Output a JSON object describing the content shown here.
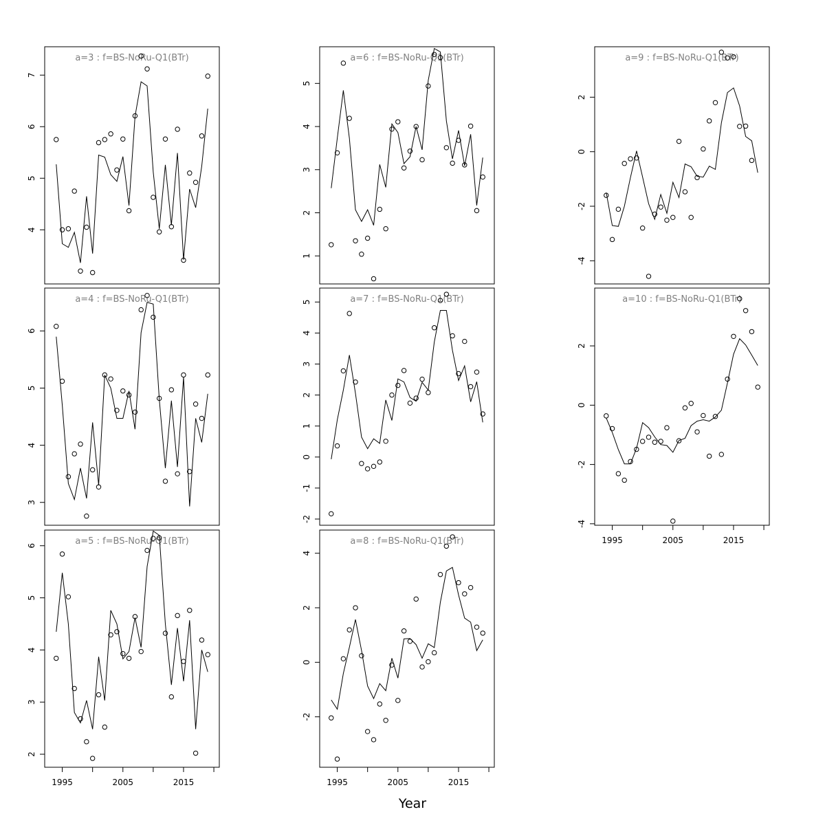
{
  "xlabel": "Year",
  "chart_data": [
    {
      "type": "scatter+line",
      "title": "a=3  :  f=BS-NoRu-Q1(BTr)",
      "x": [
        1994,
        1995,
        1996,
        1997,
        1998,
        1999,
        2000,
        2001,
        2002,
        2003,
        2004,
        2005,
        2006,
        2007,
        2008,
        2009,
        2010,
        2011,
        2012,
        2013,
        2014,
        2015,
        2016,
        2017,
        2018,
        2019
      ],
      "observed": [
        5.75,
        4.0,
        4.02,
        4.75,
        3.2,
        4.05,
        3.17,
        5.69,
        5.75,
        5.86,
        5.16,
        5.76,
        4.37,
        6.21,
        7.37,
        7.12,
        4.63,
        3.96,
        5.76,
        4.06,
        5.95,
        3.41,
        5.1,
        4.92,
        5.82,
        6.98
      ],
      "fitted": [
        5.27,
        3.73,
        3.66,
        3.95,
        3.36,
        4.65,
        3.54,
        5.45,
        5.41,
        5.07,
        4.94,
        5.42,
        4.47,
        6.2,
        6.87,
        6.79,
        5.12,
        4.02,
        5.26,
        4.09,
        5.49,
        3.42,
        4.79,
        4.43,
        5.23,
        6.35
      ],
      "ylim": [
        2.95,
        7.55
      ],
      "yticks": [
        4,
        5,
        6,
        7
      ],
      "show_xaxis": false
    },
    {
      "type": "scatter+line",
      "title": "a=4  :  f=BS-NoRu-Q1(BTr)",
      "x": [
        1994,
        1995,
        1996,
        1997,
        1998,
        1999,
        2000,
        2001,
        2002,
        2003,
        2004,
        2005,
        2006,
        2007,
        2008,
        2009,
        2010,
        2011,
        2012,
        2013,
        2014,
        2015,
        2016,
        2017,
        2018,
        2019
      ],
      "observed": [
        6.08,
        5.12,
        3.45,
        3.85,
        4.02,
        2.76,
        3.57,
        3.27,
        5.23,
        5.16,
        4.61,
        4.95,
        4.88,
        4.58,
        6.37,
        6.62,
        6.24,
        4.82,
        3.37,
        4.97,
        3.5,
        5.23,
        3.54,
        4.72,
        4.47,
        5.23
      ],
      "fitted": [
        5.9,
        4.7,
        3.33,
        3.05,
        3.6,
        3.07,
        4.4,
        3.3,
        5.23,
        5.0,
        4.47,
        4.47,
        4.95,
        4.28,
        5.97,
        6.5,
        6.47,
        4.8,
        3.6,
        4.78,
        3.62,
        5.19,
        2.93,
        4.47,
        4.05,
        4.9
      ],
      "ylim": [
        2.6,
        6.75
      ],
      "yticks": [
        3,
        4,
        5,
        6
      ],
      "show_xaxis": false
    },
    {
      "type": "scatter+line",
      "title": "a=5  :  f=BS-NoRu-Q1(BTr)",
      "x": [
        1994,
        1995,
        1996,
        1997,
        1998,
        1999,
        2000,
        2001,
        2002,
        2003,
        2004,
        2005,
        2006,
        2007,
        2008,
        2009,
        2010,
        2011,
        2012,
        2013,
        2014,
        2015,
        2016,
        2017,
        2018,
        2019
      ],
      "observed": [
        3.84,
        5.84,
        5.02,
        3.26,
        2.68,
        2.24,
        1.92,
        3.14,
        2.52,
        4.29,
        4.35,
        3.93,
        3.84,
        4.64,
        3.97,
        5.91,
        6.14,
        6.15,
        4.32,
        3.1,
        4.66,
        3.78,
        4.76,
        2.02,
        4.19,
        3.91
      ],
      "fitted": [
        4.35,
        5.48,
        4.5,
        2.8,
        2.6,
        3.03,
        2.48,
        3.87,
        3.03,
        4.76,
        4.5,
        3.83,
        3.97,
        4.62,
        4.05,
        5.6,
        6.28,
        6.2,
        4.5,
        3.33,
        4.42,
        3.4,
        4.57,
        2.48,
        4.0,
        3.58
      ],
      "ylim": [
        1.75,
        6.3
      ],
      "yticks": [
        2,
        3,
        4,
        5,
        6
      ],
      "show_xaxis": true
    },
    {
      "type": "scatter+line",
      "title": "a=6  :  f=BS-NoRu-Q1(BTr)",
      "x": [
        1994,
        1995,
        1996,
        1997,
        1998,
        1999,
        2000,
        2001,
        2002,
        2003,
        2004,
        2005,
        2006,
        2007,
        2008,
        2009,
        2010,
        2011,
        2012,
        2013,
        2014,
        2015,
        2016,
        2017,
        2018,
        2019
      ],
      "observed": [
        1.26,
        3.39,
        5.47,
        4.19,
        1.35,
        1.04,
        1.41,
        0.47,
        2.08,
        1.63,
        3.94,
        4.11,
        3.04,
        3.43,
        4.0,
        3.23,
        4.94,
        5.67,
        5.6,
        3.51,
        3.15,
        3.68,
        3.11,
        4.01,
        2.05,
        2.83
      ],
      "fitted": [
        2.57,
        3.73,
        4.84,
        3.73,
        2.07,
        1.8,
        2.07,
        1.71,
        3.12,
        2.59,
        4.06,
        3.86,
        3.14,
        3.3,
        4.0,
        3.46,
        5.07,
        5.81,
        5.73,
        4.13,
        3.25,
        3.91,
        3.09,
        3.82,
        2.17,
        3.28
      ],
      "ylim": [
        0.35,
        5.85
      ],
      "yticks": [
        1,
        2,
        3,
        4,
        5
      ],
      "show_xaxis": false
    },
    {
      "type": "scatter+line",
      "title": "a=7  :  f=BS-NoRu-Q1(BTr)",
      "x": [
        1994,
        1995,
        1996,
        1997,
        1998,
        1999,
        2000,
        2001,
        2002,
        2003,
        2004,
        2005,
        2006,
        2007,
        2008,
        2009,
        2010,
        2011,
        2012,
        2013,
        2014,
        2015,
        2016,
        2017,
        2018,
        2019
      ],
      "observed": [
        -1.83,
        0.36,
        2.78,
        4.63,
        2.42,
        -0.21,
        -0.38,
        -0.3,
        -0.16,
        0.51,
        2.0,
        2.31,
        2.79,
        1.74,
        1.9,
        2.51,
        2.08,
        4.17,
        5.05,
        5.25,
        3.91,
        2.69,
        3.73,
        2.27,
        2.74,
        1.39
      ],
      "fitted": [
        -0.07,
        1.2,
        2.16,
        3.29,
        2.06,
        0.64,
        0.27,
        0.59,
        0.44,
        1.84,
        1.18,
        2.52,
        2.42,
        1.92,
        1.8,
        2.41,
        2.16,
        3.71,
        4.73,
        4.73,
        3.44,
        2.47,
        2.94,
        1.78,
        2.43,
        1.12
      ],
      "ylim": [
        -2.2,
        5.45
      ],
      "yticks": [
        -2,
        -1,
        0,
        1,
        2,
        3,
        4,
        5
      ],
      "show_xaxis": false
    },
    {
      "type": "scatter+line",
      "title": "a=8  :  f=BS-NoRu-Q1(BTr)",
      "x": [
        1994,
        1995,
        1996,
        1997,
        1998,
        1999,
        2000,
        2001,
        2002,
        2003,
        2004,
        2005,
        2006,
        2007,
        2008,
        2009,
        2010,
        2011,
        2012,
        2013,
        2014,
        2015,
        2016,
        2017,
        2018,
        2019
      ],
      "observed": [
        -2.04,
        -3.55,
        0.13,
        1.19,
        2.0,
        0.24,
        -2.54,
        -2.84,
        -1.53,
        -2.13,
        -0.1,
        -1.4,
        1.15,
        0.77,
        2.32,
        -0.17,
        0.02,
        0.35,
        3.22,
        4.26,
        4.6,
        2.92,
        2.51,
        2.74,
        1.29,
        1.07
      ],
      "fitted": [
        -1.38,
        -1.72,
        -0.41,
        0.55,
        1.57,
        0.43,
        -0.87,
        -1.33,
        -0.78,
        -1.04,
        0.15,
        -0.58,
        0.86,
        0.87,
        0.65,
        0.15,
        0.68,
        0.54,
        2.2,
        3.35,
        3.48,
        2.47,
        1.62,
        1.47,
        0.43,
        0.82
      ],
      "ylim": [
        -3.85,
        4.85
      ],
      "yticks": [
        -2,
        0,
        2,
        4
      ],
      "show_xaxis": true
    },
    {
      "type": "scatter+line",
      "title": "a=9  :  f=BS-NoRu-Q1(BTr)",
      "x": [
        1994,
        1995,
        1996,
        1997,
        1998,
        1999,
        2000,
        2001,
        2002,
        2003,
        2004,
        2005,
        2006,
        2007,
        2008,
        2009,
        2010,
        2011,
        2012,
        2013,
        2014,
        2015,
        2016,
        2017,
        2018,
        2019
      ],
      "observed": [
        -1.6,
        -3.22,
        -2.11,
        -0.43,
        -0.26,
        -0.23,
        -2.8,
        -4.57,
        -2.29,
        -2.03,
        -2.51,
        -2.41,
        0.38,
        -1.47,
        -2.41,
        -0.95,
        0.1,
        1.13,
        1.8,
        3.65,
        3.44,
        3.48,
        0.93,
        0.94,
        -0.32,
        null
      ],
      "fitted": [
        -1.5,
        -2.71,
        -2.74,
        -2.0,
        -0.95,
        0.03,
        -0.93,
        -1.91,
        -2.48,
        -1.57,
        -2.26,
        -1.12,
        -1.68,
        -0.45,
        -0.55,
        -0.9,
        -0.93,
        -0.53,
        -0.65,
        1.06,
        2.17,
        2.34,
        1.68,
        0.56,
        0.4,
        -0.77
      ],
      "ylim": [
        -4.85,
        3.85
      ],
      "yticks": [
        -4,
        -2,
        0,
        2
      ],
      "show_xaxis": false
    },
    {
      "type": "scatter+line",
      "title": "a=10  :  f=BS-NoRu-Q1(BTr)",
      "x": [
        1994,
        1995,
        1996,
        1997,
        1998,
        1999,
        2000,
        2001,
        2002,
        2003,
        2004,
        2005,
        2006,
        2007,
        2008,
        2009,
        2010,
        2011,
        2012,
        2013,
        2014,
        2015,
        2016,
        2017,
        2018,
        2019
      ],
      "observed": [
        -0.36,
        -0.79,
        -2.31,
        -2.53,
        -1.9,
        -1.49,
        -1.22,
        -1.08,
        -1.25,
        -1.22,
        -0.76,
        -3.91,
        -1.2,
        -0.09,
        0.06,
        -0.9,
        -0.35,
        -1.72,
        -0.38,
        -1.66,
        0.88,
        2.32,
        3.59,
        3.19,
        2.48,
        0.61
      ],
      "fitted": [
        -0.43,
        -0.92,
        -1.5,
        -1.98,
        -1.98,
        -1.45,
        -0.59,
        -0.76,
        -1.07,
        -1.33,
        -1.36,
        -1.59,
        -1.19,
        -1.12,
        -0.69,
        -0.54,
        -0.49,
        -0.54,
        -0.4,
        -0.17,
        0.75,
        1.72,
        2.24,
        2.03,
        1.69,
        1.34
      ],
      "ylim": [
        -4.05,
        3.95
      ],
      "yticks": [
        -4,
        -2,
        0,
        2
      ],
      "show_xaxis": true
    }
  ]
}
